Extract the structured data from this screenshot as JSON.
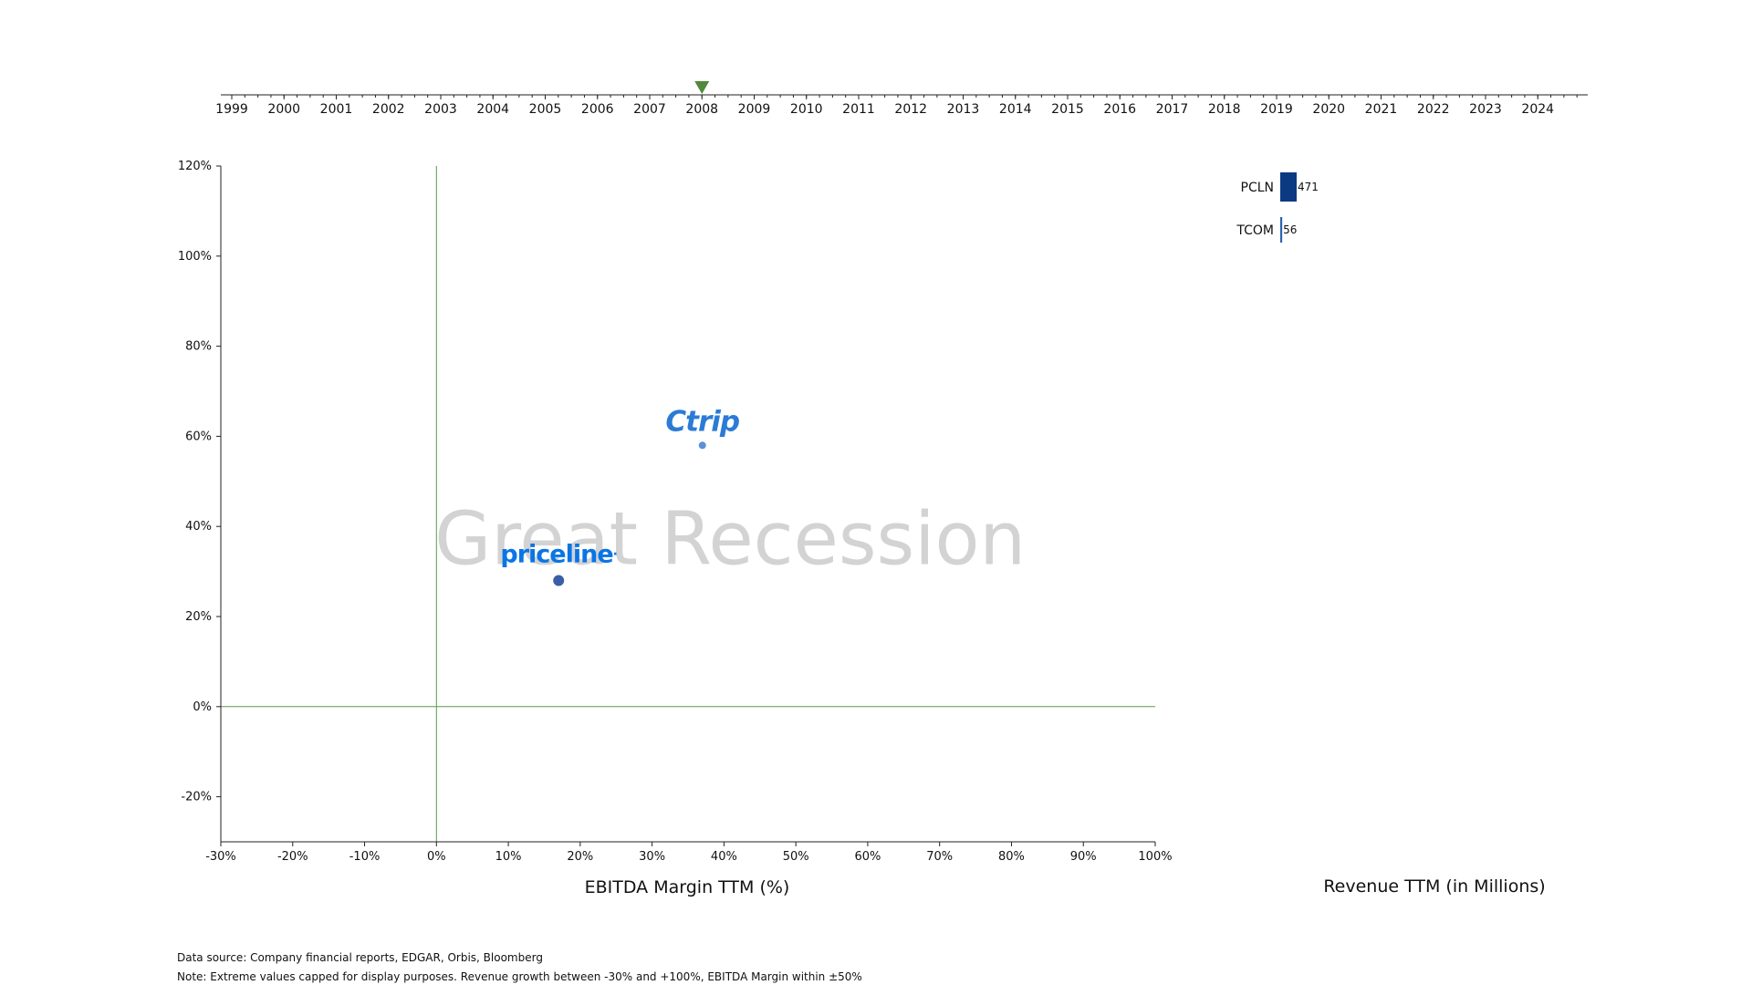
{
  "chart_data": {
    "type": "scatter",
    "title": "",
    "xlabel": "EBITDA Margin TTM (%)",
    "ylabel": "",
    "xlim": [
      -30,
      100
    ],
    "ylim": [
      -30,
      120
    ],
    "x_ticks": [
      -30,
      -20,
      -10,
      0,
      10,
      20,
      30,
      40,
      50,
      60,
      70,
      80,
      90,
      100
    ],
    "y_ticks": [
      -20,
      0,
      20,
      40,
      60,
      80,
      100,
      120
    ],
    "tick_suffix": "%",
    "reference_lines": {
      "x": 0,
      "y": 0,
      "color": "#5a9a4a"
    },
    "watermark": "Great Recession",
    "points": [
      {
        "name": "priceline",
        "ticker": "PCLN",
        "x": 17,
        "y": 28,
        "color": "#3a5ea8",
        "logo": "priceline-logo"
      },
      {
        "name": "Ctrip",
        "ticker": "TCOM",
        "x": 37,
        "y": 58,
        "color": "#5b8fd8",
        "logo": "ctrip-logo"
      }
    ],
    "logo_suffix": ".",
    "timeline": {
      "years": [
        1999,
        2000,
        2001,
        2002,
        2003,
        2004,
        2005,
        2006,
        2007,
        2008,
        2009,
        2010,
        2011,
        2012,
        2013,
        2014,
        2015,
        2016,
        2017,
        2018,
        2019,
        2020,
        2021,
        2022,
        2023,
        2024
      ],
      "current": 2008,
      "marker_color": "#4f8a3c"
    },
    "revenue_bars": {
      "xlabel": "Revenue TTM (in Millions)",
      "bars": [
        {
          "label": "PCLN",
          "value": 471,
          "color": "#0b3a82"
        },
        {
          "label": "TCOM",
          "value": 56,
          "color": "#2a62b0"
        }
      ]
    }
  },
  "footer": {
    "source": "Data source: Company financial reports, EDGAR, Orbis, Bloomberg",
    "note": "Note: Extreme values capped for display purposes. Revenue growth between -30% and +100%, EBITDA Margin within ±50%"
  }
}
